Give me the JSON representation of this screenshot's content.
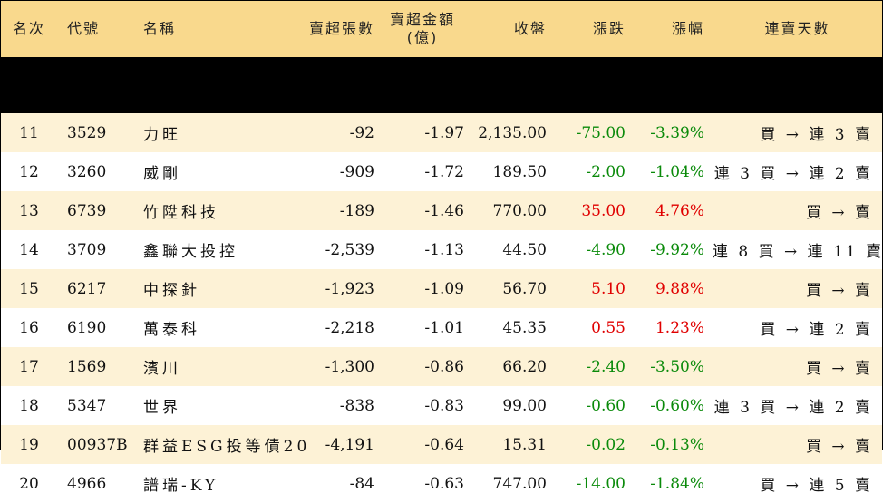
{
  "header": {
    "rank": "名次",
    "code": "代號",
    "name": "名稱",
    "net_sell_lots": "賣超張數",
    "net_sell_amount_line1": "賣超金額",
    "net_sell_amount_line2": "(億)",
    "close": "收盤",
    "change": "漲跌",
    "change_pct": "漲幅",
    "streak": "連賣天數"
  },
  "colors": {
    "header_bg": "#f9d98d",
    "stripe_bg": "#fdf2d6",
    "up": "#e00000",
    "down": "#0a8a0a"
  },
  "rows": [
    {
      "rank": "11",
      "code": "3529",
      "name": "力旺",
      "lots": "-92",
      "amount": "-1.97",
      "close": "2,135.00",
      "change": "-75.00",
      "pct": "-3.39%",
      "dir": "down",
      "streak": "買 → 連 3 賣"
    },
    {
      "rank": "12",
      "code": "3260",
      "name": "威剛",
      "lots": "-909",
      "amount": "-1.72",
      "close": "189.50",
      "change": "-2.00",
      "pct": "-1.04%",
      "dir": "down",
      "streak": "連 3 買 → 連 2 賣"
    },
    {
      "rank": "13",
      "code": "6739",
      "name": "竹陞科技",
      "lots": "-189",
      "amount": "-1.46",
      "close": "770.00",
      "change": "35.00",
      "pct": "4.76%",
      "dir": "up",
      "streak": "買 → 賣"
    },
    {
      "rank": "14",
      "code": "3709",
      "name": "鑫聯大投控",
      "lots": "-2,539",
      "amount": "-1.13",
      "close": "44.50",
      "change": "-4.90",
      "pct": "-9.92%",
      "dir": "down",
      "streak": "連 8 買 → 連 11 賣"
    },
    {
      "rank": "15",
      "code": "6217",
      "name": "中探針",
      "lots": "-1,923",
      "amount": "-1.09",
      "close": "56.70",
      "change": "5.10",
      "pct": "9.88%",
      "dir": "up",
      "streak": "買 → 賣"
    },
    {
      "rank": "16",
      "code": "6190",
      "name": "萬泰科",
      "lots": "-2,218",
      "amount": "-1.01",
      "close": "45.35",
      "change": "0.55",
      "pct": "1.23%",
      "dir": "up",
      "streak": "買 → 連 2 賣"
    },
    {
      "rank": "17",
      "code": "1569",
      "name": "濱川",
      "lots": "-1,300",
      "amount": "-0.86",
      "close": "66.20",
      "change": "-2.40",
      "pct": "-3.50%",
      "dir": "down",
      "streak": "買 → 賣"
    },
    {
      "rank": "18",
      "code": "5347",
      "name": "世界",
      "lots": "-838",
      "amount": "-0.83",
      "close": "99.00",
      "change": "-0.60",
      "pct": "-0.60%",
      "dir": "down",
      "streak": "連 3 買 → 連 2 賣"
    },
    {
      "rank": "19",
      "code": "00937B",
      "name": "群益ESG投等債20",
      "lots": "-4,191",
      "amount": "-0.64",
      "close": "15.31",
      "change": "-0.02",
      "pct": "-0.13%",
      "dir": "down",
      "streak": "買 → 賣"
    },
    {
      "rank": "20",
      "code": "4966",
      "name": "譜瑞-KY",
      "lots": "-84",
      "amount": "-0.63",
      "close": "747.00",
      "change": "-14.00",
      "pct": "-1.84%",
      "dir": "down",
      "streak": "買 → 連 5 賣"
    }
  ]
}
